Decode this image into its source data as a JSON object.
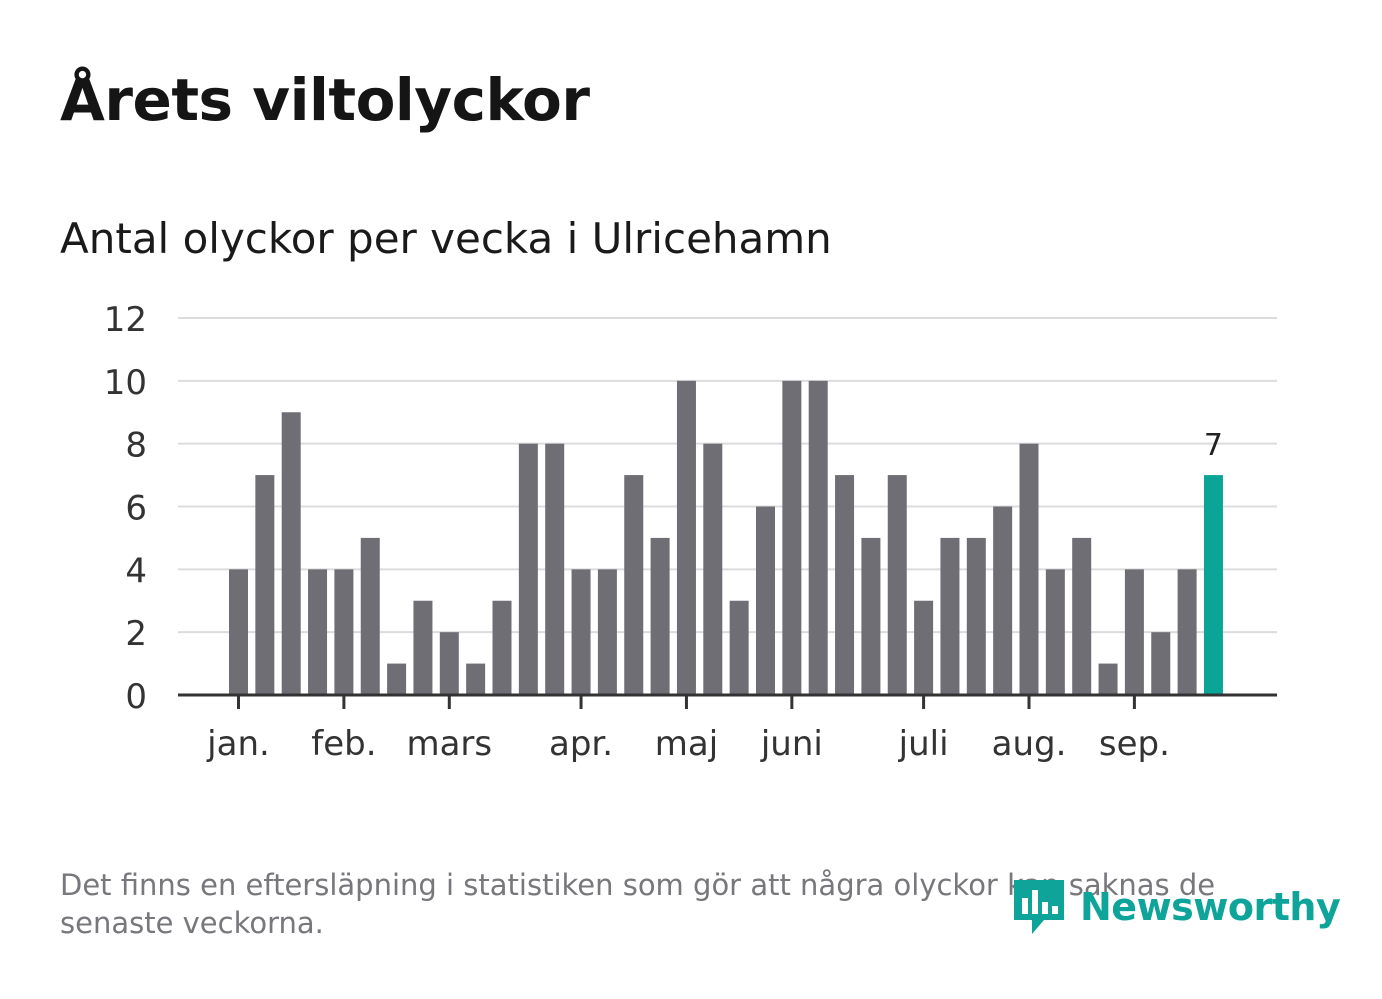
{
  "title": "Årets viltolyckor",
  "subtitle": "Antal olyckor per vecka i Ulricehamn",
  "footnote": "Det finns en eftersläpning i statistiken som gör att några olyckor kan saknas de senaste veckorna.",
  "brand": {
    "name": "Newsworthy",
    "icon": "newsworthy-logo-icon"
  },
  "colors": {
    "bar": "#6f6e74",
    "highlight": "#0aa597",
    "grid": "#dcdcdc",
    "axis": "#333333",
    "text": "#333333",
    "brand": "#0ea49a"
  },
  "chart_data": {
    "type": "bar",
    "title": "Antal olyckor per vecka i Ulricehamn",
    "xlabel": "",
    "ylabel": "",
    "ylim": [
      0,
      12
    ],
    "yticks": [
      "0",
      "2",
      "4",
      "6",
      "8",
      "10",
      "12"
    ],
    "grid": true,
    "weeks": [
      1,
      2,
      3,
      4,
      5,
      6,
      7,
      8,
      9,
      10,
      11,
      12,
      13,
      14,
      15,
      16,
      17,
      18,
      19,
      20,
      21,
      22,
      23,
      24,
      25,
      26,
      27,
      28,
      29,
      30,
      31,
      32,
      33,
      34,
      35,
      36,
      37,
      38
    ],
    "values": [
      4,
      7,
      9,
      4,
      4,
      5,
      1,
      3,
      2,
      1,
      3,
      8,
      8,
      4,
      4,
      7,
      5,
      10,
      8,
      3,
      6,
      10,
      10,
      7,
      5,
      7,
      3,
      5,
      5,
      6,
      8,
      4,
      5,
      1,
      4,
      2,
      4,
      7
    ],
    "highlight_last": true,
    "highlight_label": "7",
    "month_ticks": [
      {
        "label": "jan.",
        "week": 1
      },
      {
        "label": "feb.",
        "week": 5
      },
      {
        "label": "mars",
        "week": 9
      },
      {
        "label": "apr.",
        "week": 14
      },
      {
        "label": "maj",
        "week": 18
      },
      {
        "label": "juni",
        "week": 22
      },
      {
        "label": "juli",
        "week": 27
      },
      {
        "label": "aug.",
        "week": 31
      },
      {
        "label": "sep.",
        "week": 35
      }
    ]
  }
}
